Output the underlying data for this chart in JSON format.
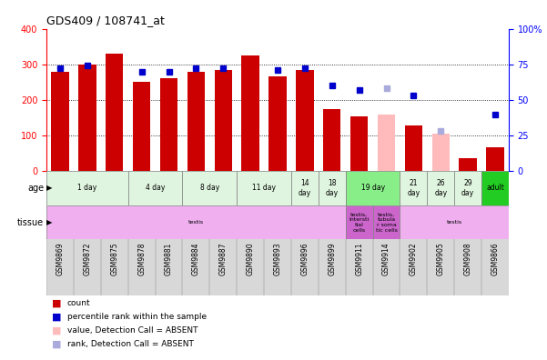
{
  "title": "GDS409 / 108741_at",
  "samples": [
    "GSM9869",
    "GSM9872",
    "GSM9875",
    "GSM9878",
    "GSM9881",
    "GSM9884",
    "GSM9887",
    "GSM9890",
    "GSM9893",
    "GSM9896",
    "GSM9899",
    "GSM9911",
    "GSM9914",
    "GSM9902",
    "GSM9905",
    "GSM9908",
    "GSM9866"
  ],
  "bar_values": [
    280,
    300,
    330,
    250,
    260,
    280,
    285,
    325,
    265,
    283,
    175,
    153,
    0,
    127,
    0,
    35,
    67
  ],
  "bar_absent": [
    false,
    false,
    false,
    false,
    false,
    false,
    false,
    false,
    false,
    false,
    false,
    false,
    true,
    false,
    true,
    false,
    false
  ],
  "absent_values": [
    0,
    0,
    0,
    0,
    0,
    0,
    0,
    0,
    0,
    0,
    0,
    0,
    160,
    0,
    105,
    0,
    0
  ],
  "dot_values": [
    72,
    74,
    0,
    70,
    70,
    72,
    72,
    0,
    71,
    72,
    60,
    57,
    58,
    53,
    28,
    0,
    40
  ],
  "dot_absent": [
    false,
    false,
    false,
    false,
    false,
    false,
    false,
    false,
    false,
    false,
    false,
    false,
    true,
    false,
    true,
    false,
    false
  ],
  "ylim_left": [
    0,
    400
  ],
  "ylim_right": [
    0,
    100
  ],
  "yticks_left": [
    0,
    100,
    200,
    300,
    400
  ],
  "yticks_right": [
    0,
    25,
    50,
    75,
    100
  ],
  "ytick_labels_right": [
    "0",
    "25",
    "50",
    "75",
    "100%"
  ],
  "age_groups": [
    {
      "label": "1 day",
      "start": 0,
      "end": 3,
      "color": "#e0f5e0"
    },
    {
      "label": "4 day",
      "start": 3,
      "end": 5,
      "color": "#e0f5e0"
    },
    {
      "label": "8 day",
      "start": 5,
      "end": 7,
      "color": "#e0f5e0"
    },
    {
      "label": "11 day",
      "start": 7,
      "end": 9,
      "color": "#e0f5e0"
    },
    {
      "label": "14\nday",
      "start": 9,
      "end": 10,
      "color": "#e0f5e0"
    },
    {
      "label": "18\nday",
      "start": 10,
      "end": 11,
      "color": "#e0f5e0"
    },
    {
      "label": "19 day",
      "start": 11,
      "end": 13,
      "color": "#88ee88"
    },
    {
      "label": "21\nday",
      "start": 13,
      "end": 14,
      "color": "#e0f5e0"
    },
    {
      "label": "26\nday",
      "start": 14,
      "end": 15,
      "color": "#e0f5e0"
    },
    {
      "label": "29\nday",
      "start": 15,
      "end": 16,
      "color": "#e0f5e0"
    },
    {
      "label": "adult",
      "start": 16,
      "end": 17,
      "color": "#22cc22"
    }
  ],
  "tissue_groups": [
    {
      "label": "testis",
      "start": 0,
      "end": 11,
      "color": "#f0b0f0"
    },
    {
      "label": "testis,\nintersti\ntial\ncells",
      "start": 11,
      "end": 12,
      "color": "#cc66cc"
    },
    {
      "label": "testis,\ntubula\nr soma\ntic cells",
      "start": 12,
      "end": 13,
      "color": "#cc66cc"
    },
    {
      "label": "testis",
      "start": 13,
      "end": 17,
      "color": "#f0b0f0"
    }
  ],
  "bar_color_present": "#cc0000",
  "bar_color_absent": "#ffbbbb",
  "dot_color_present": "#0000cc",
  "dot_color_absent": "#aaaadd",
  "legend_items": [
    {
      "label": "count",
      "color": "#cc0000"
    },
    {
      "label": "percentile rank within the sample",
      "color": "#0000cc"
    },
    {
      "label": "value, Detection Call = ABSENT",
      "color": "#ffbbbb"
    },
    {
      "label": "rank, Detection Call = ABSENT",
      "color": "#aaaadd"
    }
  ]
}
